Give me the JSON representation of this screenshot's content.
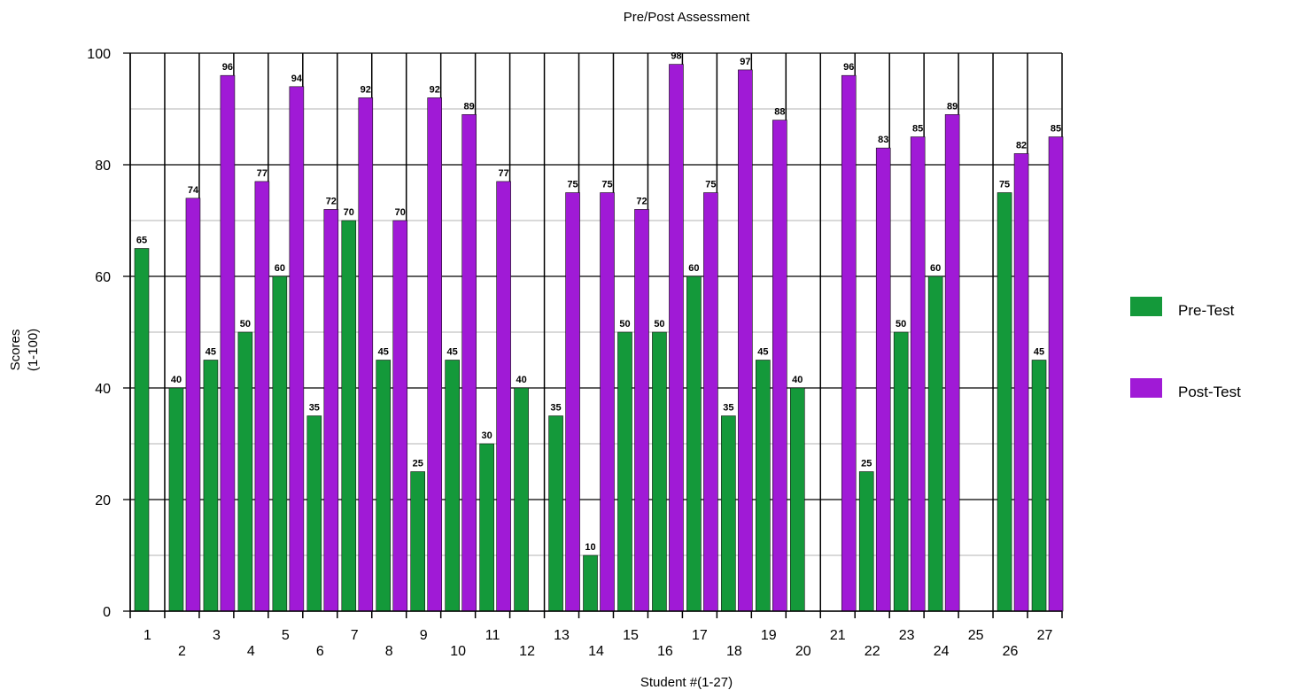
{
  "chart_data": {
    "type": "bar",
    "title": "Pre/Post Assessment",
    "xlabel": "Student #(1-27)",
    "ylabel_line1": "Scores",
    "ylabel_line2": "(1-100)",
    "ylim": [
      0,
      100
    ],
    "yticks": [
      "0",
      "20",
      "40",
      "60",
      "80",
      "100"
    ],
    "grid": true,
    "legend_position": "right",
    "categories": [
      "1",
      "2",
      "3",
      "4",
      "5",
      "6",
      "7",
      "8",
      "9",
      "10",
      "11",
      "12",
      "13",
      "14",
      "15",
      "16",
      "17",
      "18",
      "19",
      "20",
      "21",
      "22",
      "23",
      "24",
      "25",
      "26",
      "27"
    ],
    "series": [
      {
        "name": "Pre-Test",
        "color": "#14993a",
        "values": [
          65,
          40,
          45,
          50,
          60,
          35,
          70,
          45,
          25,
          45,
          30,
          40,
          35,
          10,
          50,
          50,
          60,
          35,
          45,
          40,
          null,
          25,
          50,
          60,
          null,
          75,
          45
        ]
      },
      {
        "name": "Post-Test",
        "color": "#a01ad6",
        "values": [
          null,
          74,
          96,
          77,
          94,
          72,
          92,
          70,
          92,
          89,
          77,
          null,
          75,
          75,
          72,
          98,
          75,
          97,
          88,
          null,
          96,
          83,
          85,
          89,
          null,
          82,
          85
        ]
      }
    ]
  }
}
